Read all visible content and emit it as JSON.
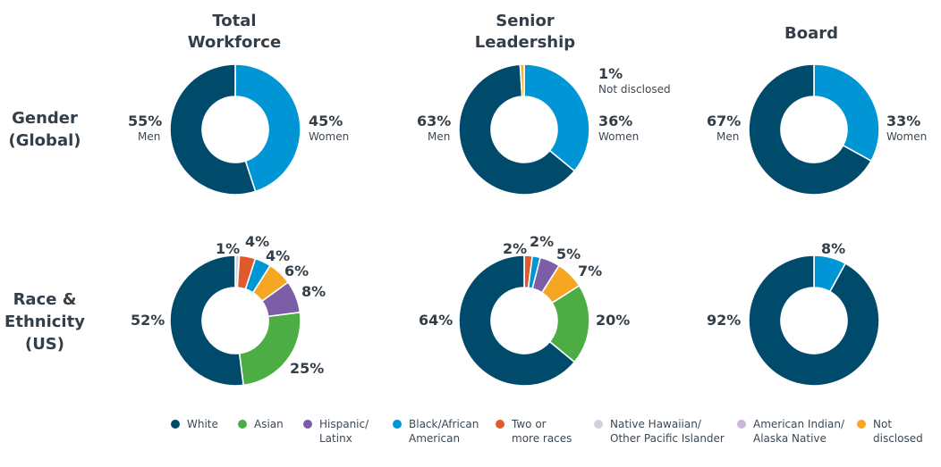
{
  "colors": {
    "navy": "#004b6b",
    "blue": "#0096d6",
    "green": "#4cad44",
    "purple": "#7b5ea7",
    "orange": "#e05a2b",
    "gray": "#cdd3da",
    "lavender": "#c9b6dc",
    "amber": "#f5a623",
    "not_disclosed_gender": "#f2b23d"
  },
  "columns": [
    "Total\nWorkforce",
    "Senior\nLeadership",
    "Board"
  ],
  "rows": [
    "Gender\n(Global)",
    "Race &\nEthnicity\n(US)"
  ],
  "legend": [
    {
      "label": "White",
      "color": "#004b6b"
    },
    {
      "label": "Asian",
      "color": "#4cad44"
    },
    {
      "label": "Hispanic/\nLatinx",
      "color": "#7b5ea7"
    },
    {
      "label": "Black/African\nAmerican",
      "color": "#0096d6"
    },
    {
      "label": "Two or\nmore races",
      "color": "#e05a2b"
    },
    {
      "label": "Native Hawaiian/\nOther Pacific Islander",
      "color": "#cdd3da"
    },
    {
      "label": "American Indian/\nAlaska Native",
      "color": "#c9b6dc"
    },
    {
      "label": "Not\ndisclosed",
      "color": "#f5a623"
    }
  ],
  "chart_data": [
    {
      "type": "pie",
      "group": "Gender (Global)",
      "panel": "Total Workforce",
      "slices": [
        {
          "name": "Women",
          "value": 45,
          "label": "45%",
          "color": "#0096d6"
        },
        {
          "name": "Men",
          "value": 55,
          "label": "55%",
          "color": "#004b6b"
        }
      ]
    },
    {
      "type": "pie",
      "group": "Gender (Global)",
      "panel": "Senior Leadership",
      "slices": [
        {
          "name": "Women",
          "value": 36,
          "label": "36%",
          "color": "#0096d6"
        },
        {
          "name": "Men",
          "value": 63,
          "label": "63%",
          "color": "#004b6b"
        },
        {
          "name": "Not disclosed",
          "value": 1,
          "label": "1%",
          "color": "#f2b23d"
        }
      ]
    },
    {
      "type": "pie",
      "group": "Gender (Global)",
      "panel": "Board",
      "slices": [
        {
          "name": "Women",
          "value": 33,
          "label": "33%",
          "color": "#0096d6"
        },
        {
          "name": "Men",
          "value": 67,
          "label": "67%",
          "color": "#004b6b"
        }
      ]
    },
    {
      "type": "pie",
      "group": "Race & Ethnicity (US)",
      "panel": "Total Workforce",
      "slices": [
        {
          "name": "Native Hawaiian/Other Pacific Islander",
          "value": 1,
          "label": "1%",
          "color": "#cdd3da"
        },
        {
          "name": "Two or more races",
          "value": 4,
          "label": "4%",
          "color": "#e05a2b"
        },
        {
          "name": "Black/African American",
          "value": 4,
          "label": "4%",
          "color": "#0096d6"
        },
        {
          "name": "Not disclosed",
          "value": 6,
          "label": "6%",
          "color": "#f5a623"
        },
        {
          "name": "Hispanic/Latinx",
          "value": 8,
          "label": "8%",
          "color": "#7b5ea7"
        },
        {
          "name": "Asian",
          "value": 25,
          "label": "25%",
          "color": "#4cad44"
        },
        {
          "name": "White",
          "value": 52,
          "label": "52%",
          "color": "#004b6b"
        }
      ]
    },
    {
      "type": "pie",
      "group": "Race & Ethnicity (US)",
      "panel": "Senior Leadership",
      "slices": [
        {
          "name": "Two or more races",
          "value": 2,
          "label": "2%",
          "color": "#e05a2b"
        },
        {
          "name": "Black/African American",
          "value": 2,
          "label": "2%",
          "color": "#0096d6"
        },
        {
          "name": "Hispanic/Latinx",
          "value": 5,
          "label": "5%",
          "color": "#7b5ea7"
        },
        {
          "name": "Not disclosed",
          "value": 7,
          "label": "7%",
          "color": "#f5a623"
        },
        {
          "name": "Asian",
          "value": 20,
          "label": "20%",
          "color": "#4cad44"
        },
        {
          "name": "White",
          "value": 64,
          "label": "64%",
          "color": "#004b6b"
        }
      ]
    },
    {
      "type": "pie",
      "group": "Race & Ethnicity (US)",
      "panel": "Board",
      "slices": [
        {
          "name": "Black/African American",
          "value": 8,
          "label": "8%",
          "color": "#0096d6"
        },
        {
          "name": "White",
          "value": 92,
          "label": "92%",
          "color": "#004b6b"
        }
      ]
    }
  ]
}
